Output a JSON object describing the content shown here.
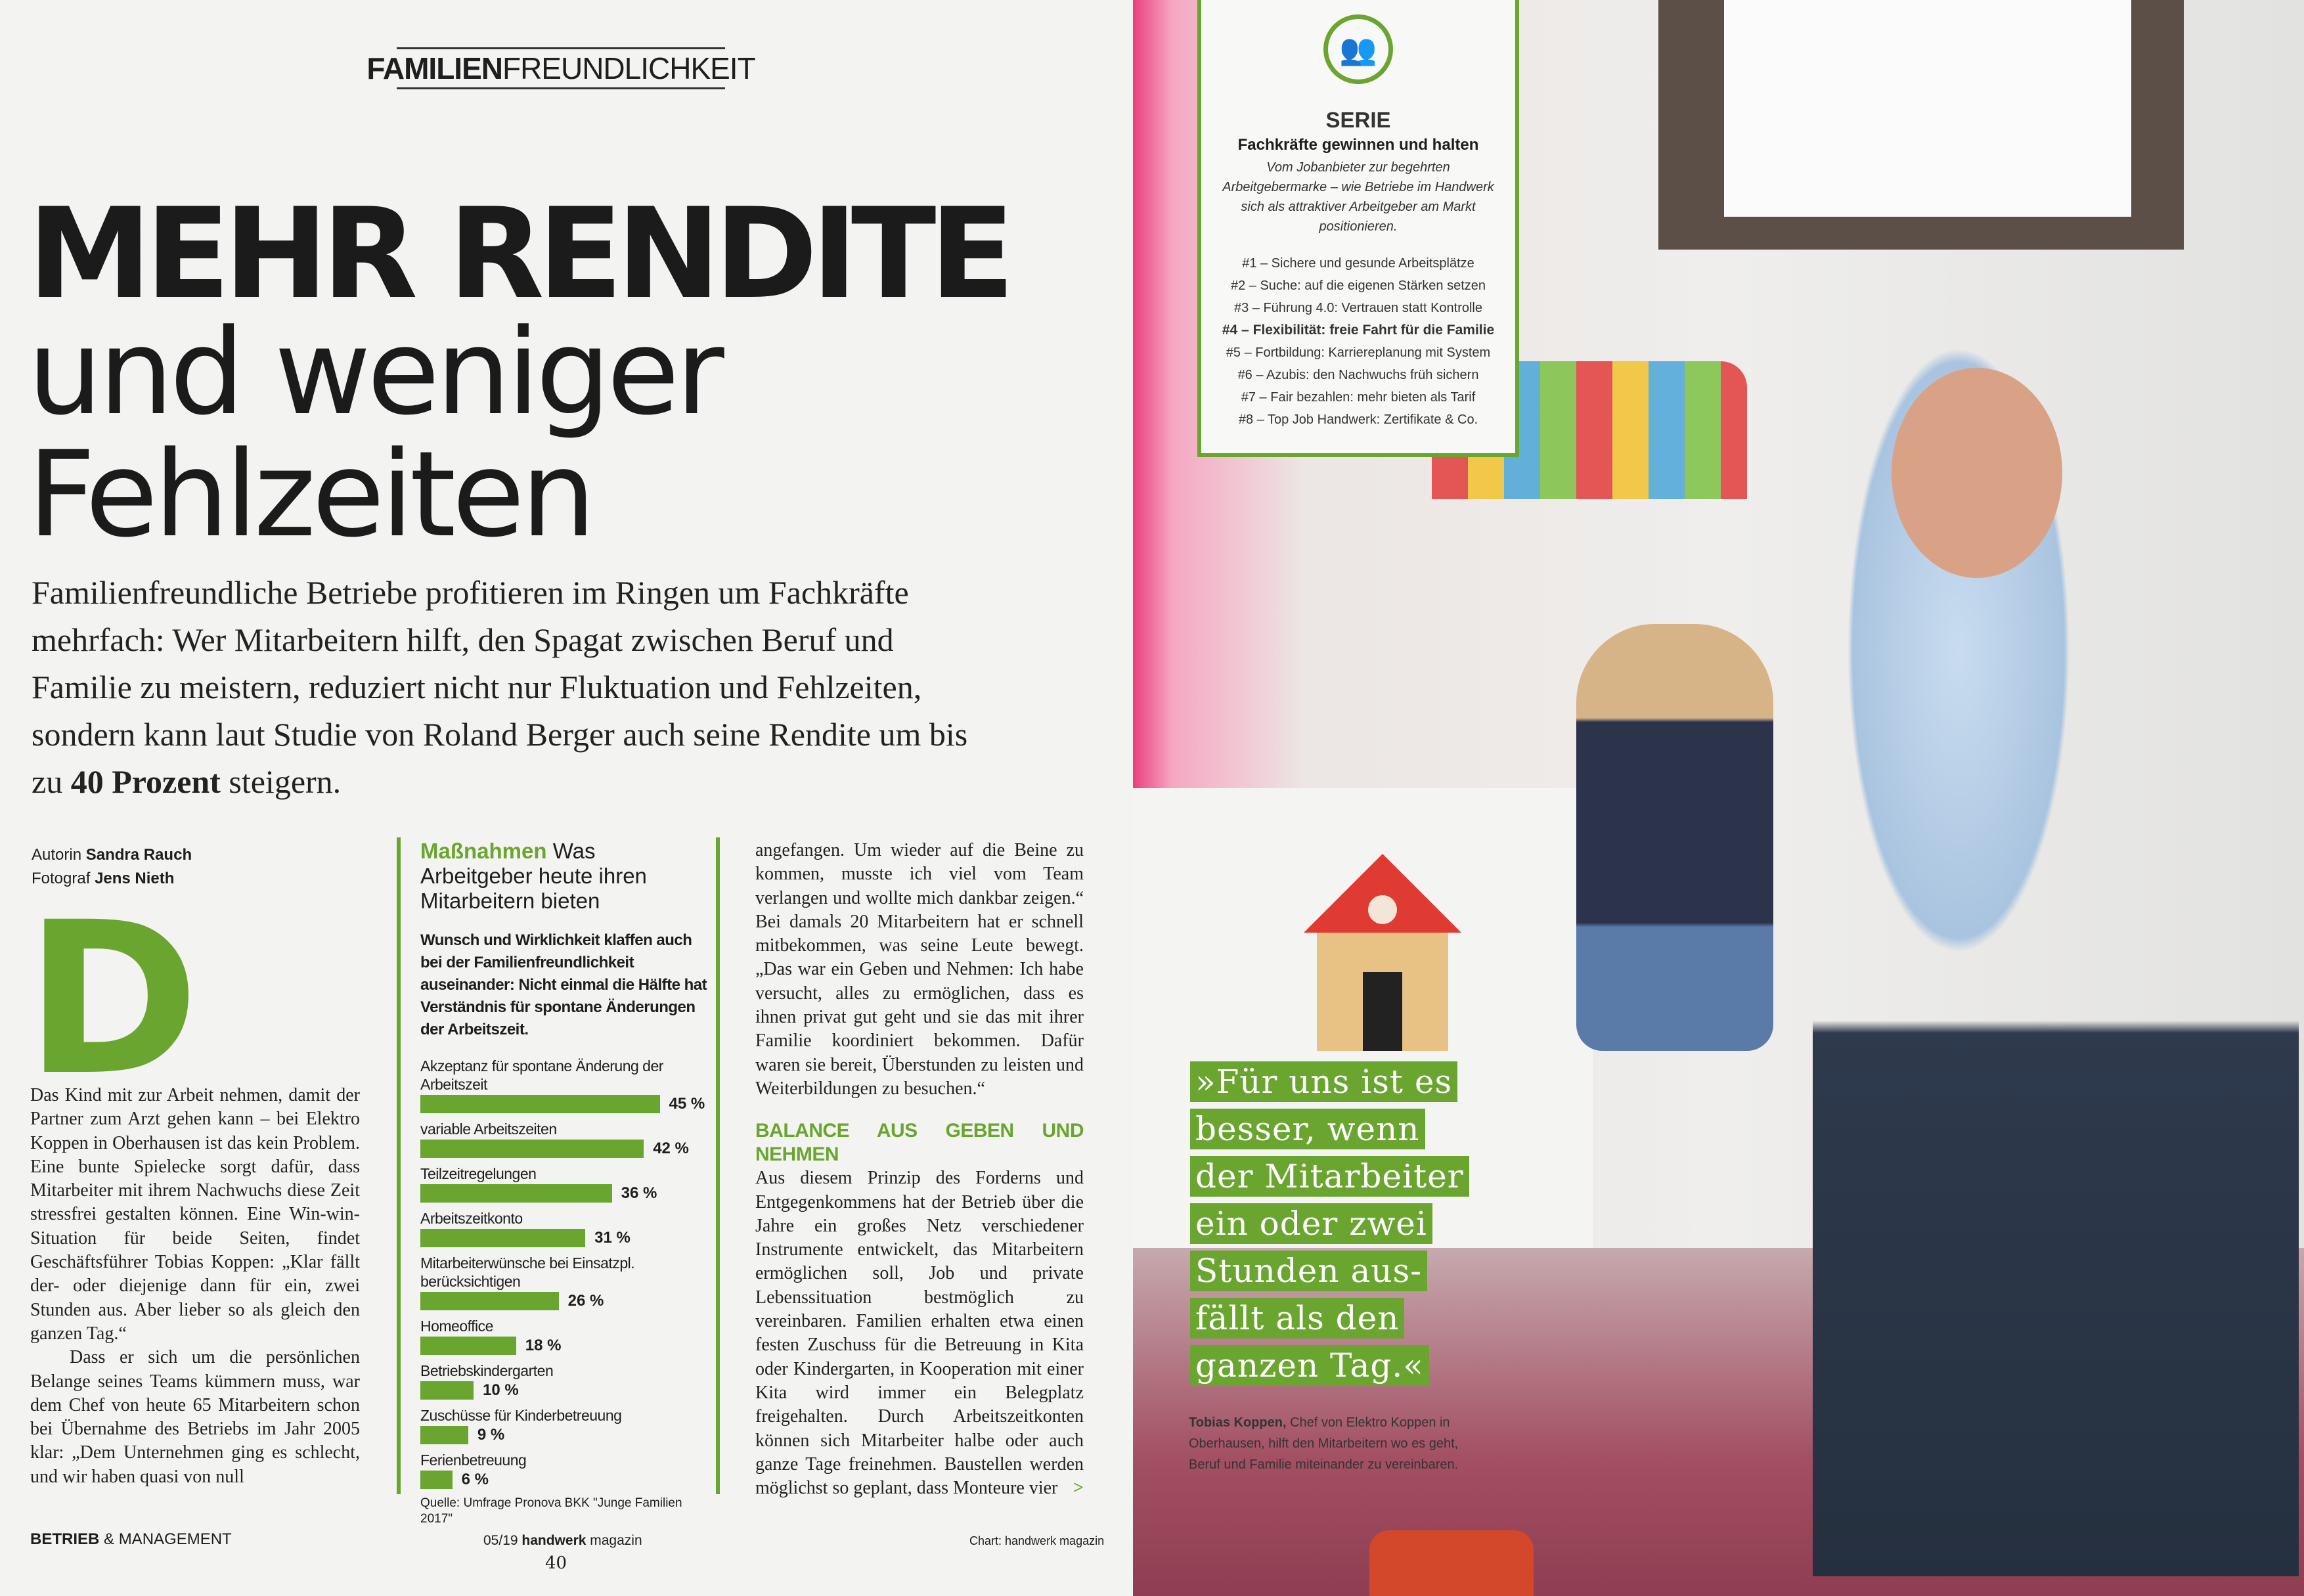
{
  "kicker": {
    "bold": "FAMILIEN",
    "rest": "FREUNDLICHKEIT"
  },
  "headline": {
    "line1": "MEHR RENDITE",
    "line2": "und weniger",
    "line3": "Fehlzeiten"
  },
  "lead": {
    "text": "Familienfreundliche Betriebe profitieren im Ringen um Fachkräfte mehrfach: Wer Mitarbeitern hilft, den Spagat zwischen Beruf und Familie zu meistern, reduziert nicht nur Fluktuation und Fehlzeiten, sondern kann laut Studie von Roland Berger auch seine Rendite um bis zu ",
    "bold": "40 Prozent",
    "end": " steigern."
  },
  "byline": {
    "author_label": "Autorin",
    "author": "Sandra Rauch",
    "photo_label": "Fotograf",
    "photographer": "Jens Nieth"
  },
  "dropcap": "D",
  "col1": {
    "p1": "as Kind mit zur Arbeit nehmen, damit der Partner zum Arzt gehen kann – bei Elektro Koppen in Oberhausen ist das kein Problem. Eine bunte Spielecke sorgt dafür, dass Mitarbeiter mit ihrem Nachwuchs diese Zeit stressfrei gestalten können. Eine Win-win-Situation für beide Seiten, findet Geschäftsführer Tobias Koppen: „Klar fällt der- oder diejenige dann für ein, zwei Stunden aus. Aber lieber so als gleich den ganzen Tag.“",
    "p1_first": "D",
    "p2": "Dass er sich um die persönlichen Belange seines Teams kümmern muss, war dem Chef von heute 65 Mitarbeitern schon bei Übernahme des Betriebs im Jahr 2005 klar: „Dem Unternehmen ging es schlecht, und wir haben quasi von null"
  },
  "col3": {
    "p1": "angefangen. Um wieder auf die Beine zu kommen, musste ich viel vom Team verlangen und wollte mich dankbar zeigen.“ Bei damals 20 Mitarbeitern hat er schnell mitbekommen, was seine Leute bewegt. „Das war ein Geben und Nehmen: Ich habe versucht, alles zu ermöglichen, dass es ihnen privat gut geht und sie das mit ihrer Familie koordiniert bekommen. Dafür waren sie bereit, Überstunden zu leisten und Weiterbildungen zu besuchen.“",
    "heading": "BALANCE AUS GEBEN UND NEHMEN",
    "p2": "Aus diesem Prinzip des Forderns und Entgegenkommens hat der Betrieb über die Jahre ein großes Netz verschiedener Instrumente entwickelt, das Mitarbeitern ermöglichen soll, Job und private Lebenssituation bestmöglich zu vereinbaren. Familien erhalten etwa einen festen Zuschuss für die Betreuung in Kita oder Kindergarten, in Kooperation mit einer Kita wird immer ein Belegplatz freigehalten. Durch Arbeitszeitkonten können sich Mitarbeiter halbe oder auch ganze Tage freinehmen. Baustellen werden möglichst so geplant, dass Monteure vier",
    "more": ">"
  },
  "chart_data": {
    "type": "bar",
    "orientation": "horizontal",
    "title_bold": "Maßnahmen",
    "title": "Was Arbeitgeber heute ihren Mitarbeitern bieten",
    "subtitle": "Wunsch und Wirklichkeit klaffen auch bei der Familienfreundlichkeit auseinander: Nicht einmal die Hälfte hat Verständnis für spontane Änderungen der Arbeitszeit.",
    "categories": [
      "Akzeptanz für spontane Änderung der Arbeitszeit",
      "variable Arbeitszeiten",
      "Teilzeitregelungen",
      "Arbeitszeitkonto",
      "Mitarbeiterwünsche bei Einsatzpl. berücksichtigen",
      "Homeoffice",
      "Betriebskindergarten",
      "Zuschüsse für Kinderbetreuung",
      "Ferienbetreuung"
    ],
    "values": [
      45,
      42,
      36,
      31,
      26,
      18,
      10,
      9,
      6
    ],
    "value_labels": [
      "45 %",
      "42 %",
      "36 %",
      "31 %",
      "26 %",
      "18 %",
      "10 %",
      "9 %",
      "6 %"
    ],
    "unit": "%",
    "color": "#6aa530",
    "grid": false,
    "source": "Quelle: Umfrage Pronova BKK \"Junge Familien 2017\"",
    "credit": "Chart: handwerk magazin"
  },
  "footer": {
    "section_bold": "BETRIEB",
    "section_rest": " & MANAGEMENT",
    "issue": "05/19 ",
    "mag_bold": "handwerk",
    "mag_rest": " magazin",
    "page": "40"
  },
  "serie": {
    "icon": "people-group-icon",
    "label": "SERIE",
    "subtitle": "Fachkräfte gewinnen und halten",
    "desc": "Vom Jobanbieter zur begehrten Arbeitgebermarke – wie Betriebe im Handwerk sich als attraktiver Arbeitgeber am Markt positionieren.",
    "items": [
      "#1 – Sichere und gesunde Arbeitsplätze",
      "#2 – Suche: auf die eigenen Stärken setzen",
      "#3 – Führung 4.0: Vertrauen statt Kontrolle",
      "#4 – Flexibilität: freie Fahrt für die Familie",
      "#5 – Fortbildung: Karriereplanung mit System",
      "#6 – Azubis: den Nachwuchs früh sichern",
      "#7 – Fair bezahlen: mehr bieten als Tarif",
      "#8 – Top Job Handwerk: Zertifikate & Co."
    ]
  },
  "quote": {
    "lines": [
      "»Für uns ist es",
      "besser, wenn",
      "der Mitarbeiter",
      "ein oder zwei",
      "Stunden aus-",
      "fällt als den",
      "ganzen Tag.«"
    ]
  },
  "caption": {
    "name": "Tobias Koppen,",
    "text": " Chef von Elektro Koppen in Oberhausen, hilft den Mitarbeitern wo es geht, Beruf und Familie miteinander zu vereinbaren."
  },
  "colors": {
    "accent": "#6aa530"
  }
}
